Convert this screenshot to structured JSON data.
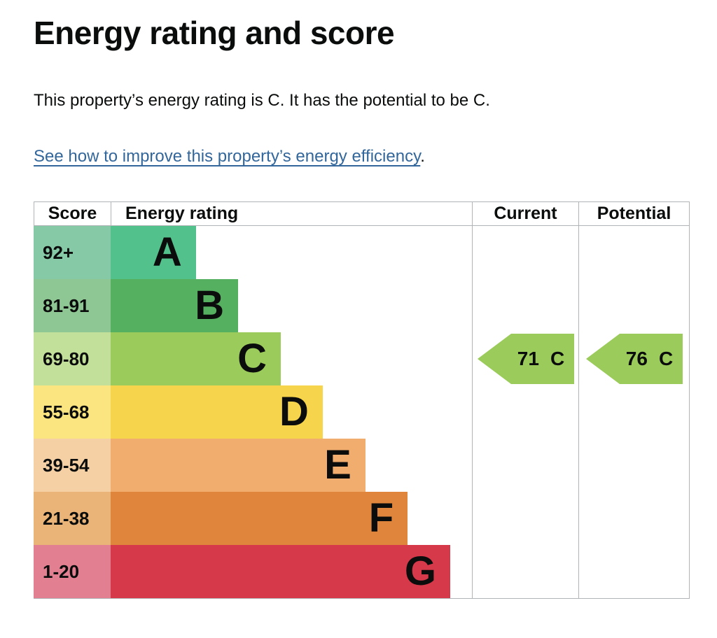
{
  "page": {
    "title": "Energy rating and score",
    "summary": "This property’s energy rating is C. It has the potential to be C.",
    "improve_link": "See how to improve this property’s energy efficiency",
    "link_suffix": "."
  },
  "colors": {
    "text": "#0b0c0c",
    "link": "#33679b",
    "table_border": "#b1b4b6"
  },
  "table": {
    "headers": {
      "score": "Score",
      "rating": "Energy rating",
      "current": "Current",
      "potential": "Potential"
    }
  },
  "chart_data": {
    "type": "bar",
    "title": "Energy rating and score",
    "description": "EPC energy-efficiency band chart with stepped bars A to G and current/potential score arrows",
    "bands": [
      {
        "grade": "A",
        "score_range": "92+",
        "bar_color": "#52c18b",
        "score_color": "#85c9a6",
        "width_pct": 23.6
      },
      {
        "grade": "B",
        "score_range": "81-91",
        "bar_color": "#55b060",
        "score_color": "#8fc794",
        "width_pct": 35.3
      },
      {
        "grade": "C",
        "score_range": "69-80",
        "bar_color": "#9bcb5a",
        "score_color": "#c3e09b",
        "width_pct": 47.1
      },
      {
        "grade": "D",
        "score_range": "55-68",
        "bar_color": "#f6d44b",
        "score_color": "#fae580",
        "width_pct": 58.7
      },
      {
        "grade": "E",
        "score_range": "39-54",
        "bar_color": "#f0ad6d",
        "score_color": "#f5d0a5",
        "width_pct": 70.5
      },
      {
        "grade": "F",
        "score_range": "21-38",
        "bar_color": "#e0853c",
        "score_color": "#eab377",
        "width_pct": 82.2
      },
      {
        "grade": "G",
        "score_range": "1-20",
        "bar_color": "#d5394a",
        "score_color": "#e28092",
        "width_pct": 94.0
      }
    ],
    "current": {
      "label": "Current",
      "value": "71",
      "grade": "C",
      "band_index": 2,
      "arrow_color": "#9bcb5a"
    },
    "potential": {
      "label": "Potential",
      "value": "76",
      "grade": "C",
      "band_index": 2,
      "arrow_color": "#9bcb5a"
    }
  }
}
